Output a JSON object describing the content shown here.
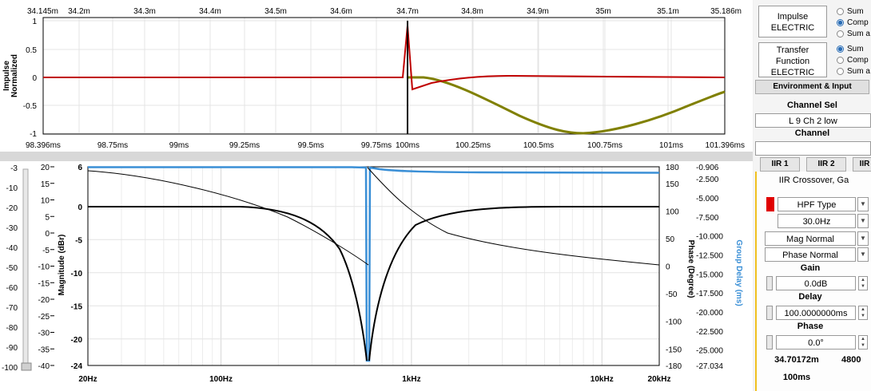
{
  "impulse_plot": {
    "top_ticks": [
      "34.145m",
      "34.2m",
      "34.3m",
      "34.4m",
      "34.5m",
      "34.6m",
      "34.7m",
      "34.8m",
      "34.9m",
      "35m",
      "35.1m",
      "35.186m"
    ],
    "bottom_ticks": [
      "98.396ms",
      "98.75ms",
      "99ms",
      "99.25ms",
      "99.5ms",
      "99.75ms",
      "100ms",
      "100.25ms",
      "100.5ms",
      "100.75ms",
      "101ms",
      "101.396ms"
    ],
    "y_ticks": [
      "1",
      "0.5",
      "0",
      "-0.5",
      "-1"
    ],
    "ylabel_line1": "Impulse",
    "ylabel_line2": "Normalized",
    "colors": {
      "impulse": "#c00000",
      "step": "#808000",
      "marker": "#000000"
    }
  },
  "freq_plot": {
    "x_ticks": [
      "20Hz",
      "100Hz",
      "1kHz",
      "10kHz",
      "20kHz"
    ],
    "mag_ticks": [
      "6",
      "0",
      "-5",
      "-10",
      "-15",
      "-20",
      "-24"
    ],
    "mag_label": "Magnitude (dBr)",
    "phase_ticks": [
      "180",
      "150",
      "100",
      "50",
      "0",
      "-50",
      "-100",
      "-150",
      "-180"
    ],
    "phase_label": "Phase (Degree)",
    "gd_ticks": [
      "-0.906",
      "-2.500",
      "-5.000",
      "-7.500",
      "-10.000",
      "-12.500",
      "-15.000",
      "-17.500",
      "-20.000",
      "-22.500",
      "-25.000",
      "-27.034"
    ],
    "gd_label": "Group Delay (ms)",
    "left_scale_a": [
      "-3",
      "-10",
      "-20",
      "-30",
      "-40",
      "-50",
      "-60",
      "-70",
      "-80",
      "-90",
      "-100"
    ],
    "left_scale_b": [
      "20",
      "15",
      "10",
      "5",
      "0",
      "-5",
      "-10",
      "-15",
      "-20",
      "-25",
      "-30",
      "-35",
      "-40"
    ],
    "colors": {
      "phase": "#3a8fd6",
      "mag": "#000000"
    }
  },
  "panel": {
    "impulse_btn": [
      "Impulse",
      "ELECTRIC"
    ],
    "impulse_radios": [
      "Sum",
      "Comp",
      "Sum a"
    ],
    "transfer_btn": [
      "Transfer",
      "Function",
      "ELECTRIC"
    ],
    "transfer_radios": [
      "Sum",
      "Comp",
      "Sum a"
    ],
    "env_tab": "Environment & Input",
    "channel_sel_label": "Channel Sel",
    "channel_value": "L 9 Ch 2 low",
    "channel_label": "Channel",
    "iir_tabs": [
      "IIR 1",
      "IIR 2",
      "IIR"
    ],
    "filter_title": "IIR Crossover, Ga",
    "hpf_type": "HPF Type",
    "freq_value": "30.0Hz",
    "mag_mode": "Mag Normal",
    "phase_mode": "Phase Normal",
    "gain_label": "Gain",
    "gain_value": "0.0dB",
    "delay_label": "Delay",
    "delay_value": "100.0000000ms",
    "phase_label": "Phase",
    "phase_value": "0.0°",
    "distance_value": "34.70172m",
    "rate_value": "4800",
    "time_value": "100ms",
    "colors": {
      "accent": "#2a6db5",
      "red_marker": "#e00000"
    }
  }
}
